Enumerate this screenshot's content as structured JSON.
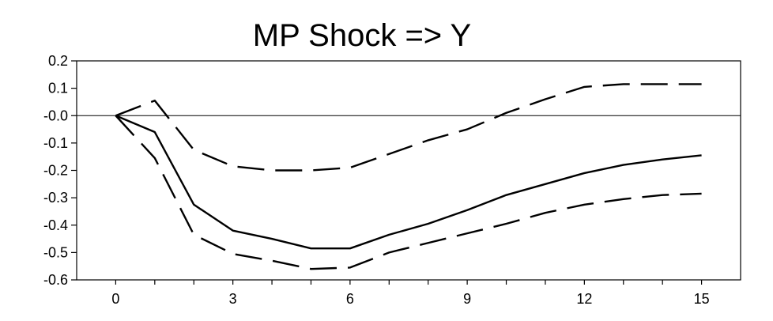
{
  "chart_data": {
    "type": "line",
    "title": "MP Shock => Y",
    "xlabel": "",
    "ylabel": "",
    "xlim": [
      -1,
      16
    ],
    "ylim": [
      -0.6,
      0.2
    ],
    "x_ticks": [
      0,
      3,
      6,
      9,
      12,
      15
    ],
    "x_ticks_minor": [
      0,
      1,
      2,
      3,
      4,
      5,
      6,
      7,
      8,
      9,
      10,
      11,
      12,
      13,
      14,
      15
    ],
    "y_ticks": [
      0.2,
      0.1,
      0.0,
      -0.1,
      -0.2,
      -0.3,
      -0.4,
      -0.5,
      -0.6
    ],
    "y_tick_labels": [
      "0.2",
      "0.1",
      "-0.0",
      "-0.1",
      "-0.2",
      "-0.3",
      "-0.4",
      "-0.5",
      "-0.6"
    ],
    "x": [
      0,
      1,
      2,
      3,
      4,
      5,
      6,
      7,
      8,
      9,
      10,
      11,
      12,
      13,
      14,
      15
    ],
    "zero_line": true,
    "grid": false,
    "series": [
      {
        "style": "solid",
        "values": [
          0.0,
          -0.06,
          -0.325,
          -0.42,
          -0.45,
          -0.485,
          -0.485,
          -0.435,
          -0.395,
          -0.345,
          -0.29,
          -0.25,
          -0.21,
          -0.18,
          -0.16,
          -0.145
        ]
      },
      {
        "style": "dashed",
        "values": [
          0.0,
          0.055,
          -0.125,
          -0.185,
          -0.2,
          -0.2,
          -0.19,
          -0.14,
          -0.09,
          -0.05,
          0.01,
          0.06,
          0.105,
          0.115,
          0.115,
          0.115
        ]
      },
      {
        "style": "dashed",
        "values": [
          0.0,
          -0.155,
          -0.435,
          -0.505,
          -0.53,
          -0.56,
          -0.555,
          -0.5,
          -0.465,
          -0.43,
          -0.395,
          -0.355,
          -0.325,
          -0.305,
          -0.29,
          -0.285
        ]
      }
    ]
  }
}
